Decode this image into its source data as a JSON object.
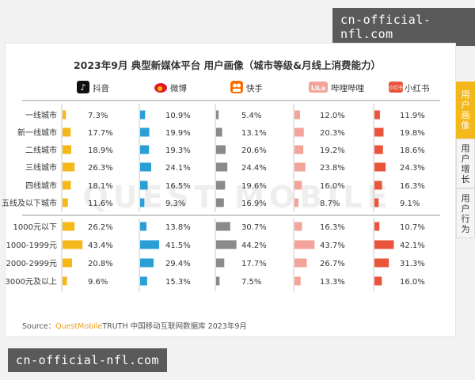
{
  "watermark": "cn-official-nfl.com",
  "side_tabs": [
    {
      "label": "用户画像",
      "active": true
    },
    {
      "label": "用户增长",
      "active": false
    },
    {
      "label": "用户行为",
      "active": false
    }
  ],
  "source": {
    "prefix": "Source：",
    "brand": "QuestMobile",
    "rest": "TRUTH 中国移动互联网数据库 2023年9月"
  },
  "bg_watermark": "QUEST MOBILE",
  "colors": {
    "抖音": "#f5b81a",
    "微博": "#2a9fd6",
    "快手": "#8a8a8a",
    "哔哩哔哩": "#f4a39a",
    "小红书": "#e9543a"
  },
  "platform_icons": [
    "douyin-icon",
    "weibo-icon",
    "kuaishou-icon",
    "bilibili-icon",
    "xiaohongshu-icon"
  ],
  "chart_data": {
    "type": "bar",
    "title": "2023年9月 典型新媒体平台 用户画像（城市等级&月线上消费能力）",
    "platforms": [
      "抖音",
      "微博",
      "快手",
      "哔哩哔哩",
      "小红书"
    ],
    "groups": [
      {
        "categories": [
          "一线城市",
          "新一线城市",
          "二线城市",
          "三线城市",
          "四线城市",
          "五线及以下城市"
        ],
        "series": [
          {
            "name": "抖音",
            "values": [
              7.3,
              17.7,
              18.9,
              26.3,
              18.1,
              11.6
            ]
          },
          {
            "name": "微博",
            "values": [
              10.9,
              19.9,
              19.3,
              24.1,
              16.5,
              9.3
            ]
          },
          {
            "name": "快手",
            "values": [
              5.4,
              13.1,
              20.6,
              24.4,
              19.6,
              16.9
            ]
          },
          {
            "name": "哔哩哔哩",
            "values": [
              12.0,
              20.3,
              19.2,
              23.8,
              16.0,
              8.7
            ]
          },
          {
            "name": "小红书",
            "values": [
              11.9,
              19.8,
              18.6,
              24.3,
              16.3,
              9.1
            ]
          }
        ]
      },
      {
        "categories": [
          "1000元以下",
          "1000-1999元",
          "2000-2999元",
          "3000元及以上"
        ],
        "series": [
          {
            "name": "抖音",
            "values": [
              26.2,
              43.4,
              20.8,
              9.6
            ]
          },
          {
            "name": "微博",
            "values": [
              13.8,
              41.5,
              29.4,
              15.3
            ]
          },
          {
            "name": "快手",
            "values": [
              30.7,
              44.2,
              17.7,
              7.5
            ]
          },
          {
            "name": "哔哩哔哩",
            "values": [
              16.3,
              43.7,
              26.7,
              13.3
            ]
          },
          {
            "name": "小红书",
            "values": [
              10.7,
              42.1,
              31.3,
              16.0
            ]
          }
        ]
      }
    ],
    "unit": "%"
  }
}
